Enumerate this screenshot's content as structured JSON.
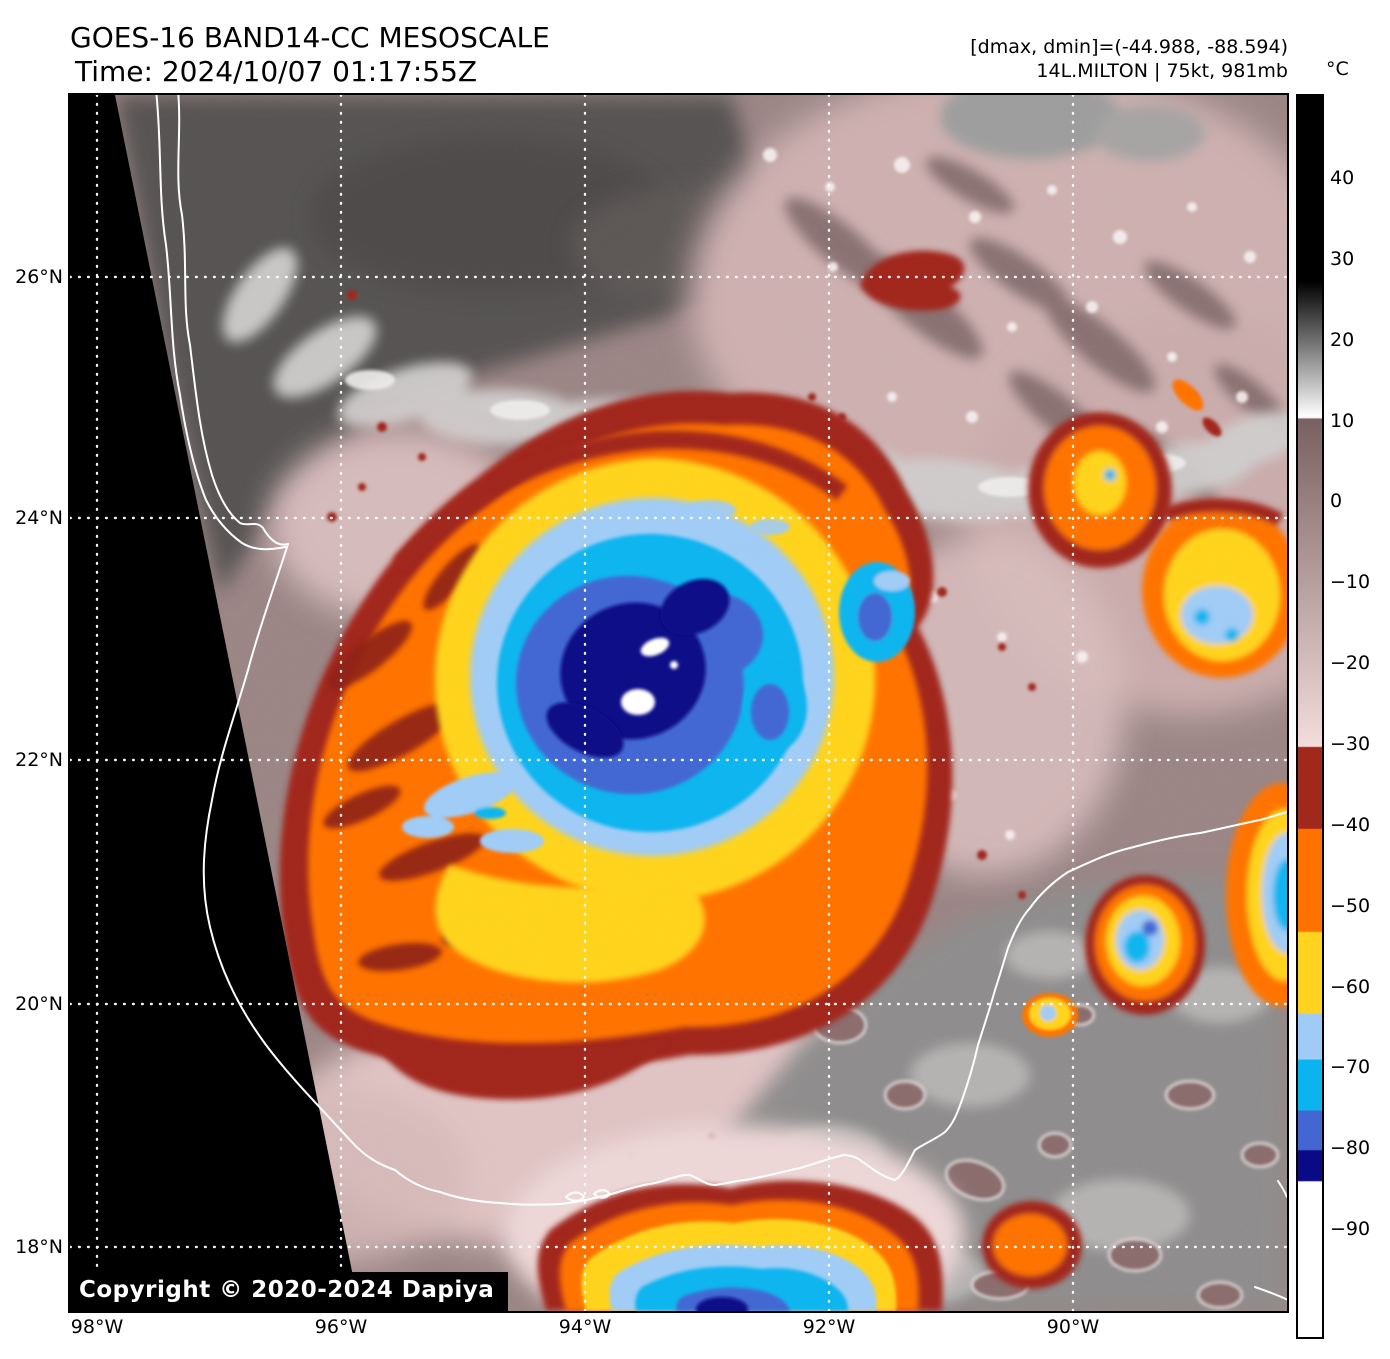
{
  "header": {
    "title_line1": "GOES-16 BAND14-CC MESOSCALE",
    "title_line2": "Time: 2024/10/07 01:17:55Z",
    "info_line1": "[dmax, dmin]=(-44.988, -88.594)",
    "info_line2": "14L.MILTON | 75kt, 981mb"
  },
  "map": {
    "copyright": "Copyright © 2020-2024 Dapiya",
    "lat_labels": [
      "26°N",
      "24°N",
      "22°N",
      "20°N",
      "18°N"
    ],
    "lon_labels": [
      "98°W",
      "96°W",
      "94°W",
      "92°W",
      "90°W"
    ]
  },
  "colorbar": {
    "unit": "°C",
    "ticks": [
      "40",
      "30",
      "20",
      "10",
      "0",
      "−10",
      "−20",
      "−30",
      "−40",
      "−50",
      "−60",
      "−70",
      "−80",
      "−90"
    ]
  },
  "palette": {
    "black": "#000000",
    "white": "#ffffff",
    "gray_base": "#9a8484",
    "gray_warm": "#8d8b8b",
    "gray_dark_land": "#575352",
    "gray_cloud_light": "#cfcccc",
    "mauve": "#9b8181",
    "mauve_dark": "#7e6666",
    "pink_pale": "#e0c3c3",
    "dark_red": "#a0281c",
    "maroon": "#8e2016",
    "orange": "#ff7200",
    "yellow": "#ffd31f",
    "blue_light": "#9fcbf6",
    "cyan": "#0cb4ef",
    "blue_royal": "#4366d2",
    "navy": "#0a0a86"
  }
}
